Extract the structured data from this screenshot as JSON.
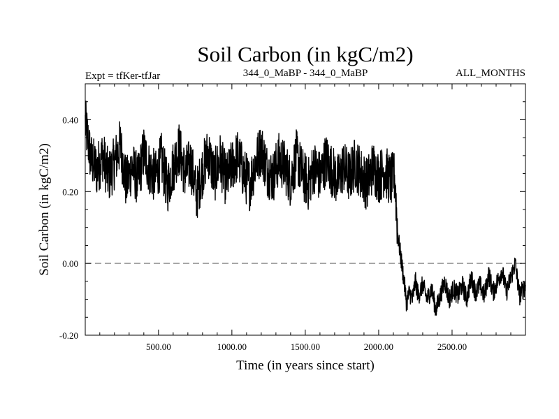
{
  "chart_data": {
    "type": "line",
    "title": "Soil Carbon (in kgC/m2)",
    "subtitle_left": "Expt = tfKer-tfJar",
    "subtitle_center": "344_0_MaBP - 344_0_MaBP",
    "subtitle_right": "ALL_MONTHS",
    "xlabel": "Time (in years since start)",
    "ylabel": "Soil Carbon (in kgC/m2)",
    "xlim": [
      1,
      3000
    ],
    "ylim": [
      -0.2,
      0.5
    ],
    "x_ticks": [
      {
        "value": 500,
        "label": "500.00"
      },
      {
        "value": 1000,
        "label": "1000.00"
      },
      {
        "value": 1500,
        "label": "1500.00"
      },
      {
        "value": 2000,
        "label": "2000.00"
      },
      {
        "value": 2500,
        "label": "2500.00"
      }
    ],
    "y_ticks": [
      {
        "value": -0.2,
        "label": "-0.20"
      },
      {
        "value": 0.0,
        "label": "0.00"
      },
      {
        "value": 0.2,
        "label": "0.20"
      },
      {
        "value": 0.4,
        "label": "0.40"
      }
    ],
    "reference_line": {
      "y": 0.0,
      "style": "dashed",
      "color": "#808080"
    },
    "grid": false,
    "series": [
      {
        "color": "#000000",
        "x": [
          1,
          40,
          80,
          120,
          160,
          200,
          240,
          280,
          320,
          360,
          400,
          440,
          480,
          520,
          560,
          600,
          640,
          680,
          720,
          760,
          800,
          840,
          880,
          920,
          960,
          1000,
          1040,
          1080,
          1120,
          1160,
          1200,
          1240,
          1280,
          1320,
          1360,
          1400,
          1440,
          1480,
          1520,
          1560,
          1600,
          1640,
          1680,
          1720,
          1760,
          1800,
          1840,
          1880,
          1920,
          1960,
          2000,
          2040,
          2080,
          2110,
          2130,
          2150,
          2170,
          2190,
          2210,
          2230,
          2250,
          2270,
          2300,
          2330,
          2360,
          2390,
          2420,
          2450,
          2480,
          2510,
          2540,
          2570,
          2600,
          2630,
          2660,
          2690,
          2720,
          2750,
          2780,
          2810,
          2840,
          2870,
          2900,
          2930,
          2960,
          3000
        ],
        "y": [
          0.39,
          0.29,
          0.26,
          0.3,
          0.24,
          0.28,
          0.33,
          0.22,
          0.27,
          0.23,
          0.31,
          0.26,
          0.24,
          0.29,
          0.21,
          0.27,
          0.32,
          0.25,
          0.28,
          0.19,
          0.26,
          0.31,
          0.24,
          0.29,
          0.23,
          0.27,
          0.3,
          0.25,
          0.22,
          0.28,
          0.32,
          0.26,
          0.24,
          0.29,
          0.27,
          0.23,
          0.3,
          0.25,
          0.22,
          0.27,
          0.24,
          0.29,
          0.26,
          0.23,
          0.27,
          0.24,
          0.28,
          0.25,
          0.22,
          0.27,
          0.24,
          0.26,
          0.23,
          0.24,
          0.08,
          0.02,
          -0.04,
          -0.11,
          -0.08,
          -0.1,
          -0.05,
          -0.09,
          -0.06,
          -0.1,
          -0.07,
          -0.13,
          -0.09,
          -0.05,
          -0.1,
          -0.07,
          -0.09,
          -0.06,
          -0.1,
          -0.04,
          -0.08,
          -0.06,
          -0.09,
          -0.03,
          -0.08,
          -0.05,
          -0.02,
          -0.08,
          -0.04,
          0.0,
          -0.09,
          -0.06
        ]
      }
    ]
  }
}
